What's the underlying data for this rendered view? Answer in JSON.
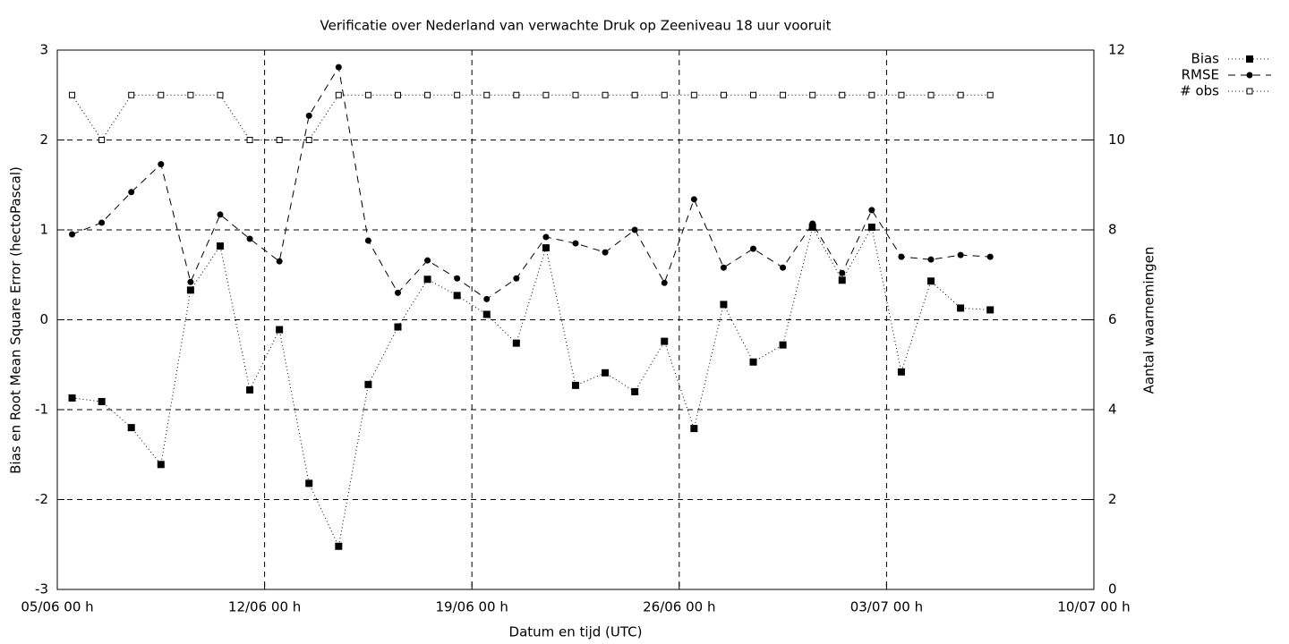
{
  "chart_data": {
    "type": "line",
    "title": "Verificatie over Nederland van verwachte Druk op Zeeniveau 18 uur vooruit",
    "xlabel": "Datum en tijd (UTC)",
    "ylabel": "Bias en Root Mean Square Error (hectoPascal)",
    "y2label": "Aantal waarnemingen",
    "x": [
      "05/06 12 h",
      "06/06 12 h",
      "07/06 12 h",
      "08/06 12 h",
      "09/06 12 h",
      "10/06 12 h",
      "11/06 12 h",
      "12/06 12 h",
      "13/06 12 h",
      "14/06 12 h",
      "15/06 12 h",
      "16/06 12 h",
      "17/06 12 h",
      "18/06 12 h",
      "19/06 12 h",
      "20/06 12 h",
      "21/06 12 h",
      "22/06 12 h",
      "23/06 12 h",
      "24/06 12 h",
      "25/06 12 h",
      "26/06 12 h",
      "27/06 12 h",
      "28/06 12 h",
      "29/06 12 h",
      "30/06 12 h",
      "01/07 12 h",
      "02/07 12 h",
      "03/07 12 h",
      "04/07 12 h",
      "05/07 12 h",
      "06/07 12 h"
    ],
    "series": [
      {
        "name": "Bias",
        "color": "#000000",
        "dash": "dotted",
        "marker": "filled-square",
        "values": [
          -0.87,
          -0.91,
          -1.2,
          -1.61,
          0.33,
          0.82,
          -0.78,
          -0.11,
          -1.82,
          -2.52,
          -0.72,
          -0.08,
          0.45,
          0.27,
          0.06,
          -0.26,
          0.8,
          -0.73,
          -0.59,
          -0.8,
          -0.24,
          -1.21,
          0.17,
          -0.47,
          -0.28,
          1.03,
          0.44,
          1.03,
          -0.58,
          0.43,
          0.13,
          0.11
        ]
      },
      {
        "name": "RMSE",
        "color": "#000000",
        "dash": "dashed",
        "marker": "filled-circle",
        "values": [
          0.95,
          1.08,
          1.42,
          1.73,
          0.42,
          1.17,
          0.9,
          0.65,
          2.27,
          2.81,
          0.88,
          0.3,
          0.66,
          0.46,
          0.23,
          0.46,
          0.92,
          0.85,
          0.75,
          1.0,
          0.41,
          1.34,
          0.58,
          0.79,
          0.58,
          1.07,
          0.52,
          1.22,
          0.7,
          0.67,
          0.72,
          0.7
        ]
      },
      {
        "name": "# obs",
        "color": "#000000",
        "dash": "dotted",
        "marker": "open-square",
        "axis": "y2",
        "values": [
          11,
          10,
          11,
          11,
          11,
          11,
          10,
          10,
          10,
          11,
          11,
          11,
          11,
          11,
          11,
          11,
          11,
          11,
          11,
          11,
          11,
          11,
          11,
          11,
          11,
          11,
          11,
          11,
          11,
          11,
          11,
          11
        ]
      }
    ],
    "xlim": [
      "05/06 00 h",
      "10/07 00 h"
    ],
    "xticks": [
      "05/06 00 h",
      "12/06 00 h",
      "19/06 00 h",
      "26/06 00 h",
      "03/07 00 h",
      "10/07 00 h"
    ],
    "ylim": [
      -3,
      3
    ],
    "yticks": [
      -3,
      -2,
      -1,
      0,
      1,
      2,
      3
    ],
    "y2lim": [
      0,
      12
    ],
    "y2ticks": [
      0,
      2,
      4,
      6,
      8,
      10,
      12
    ],
    "grid": true,
    "legend": "outside-top-right"
  }
}
